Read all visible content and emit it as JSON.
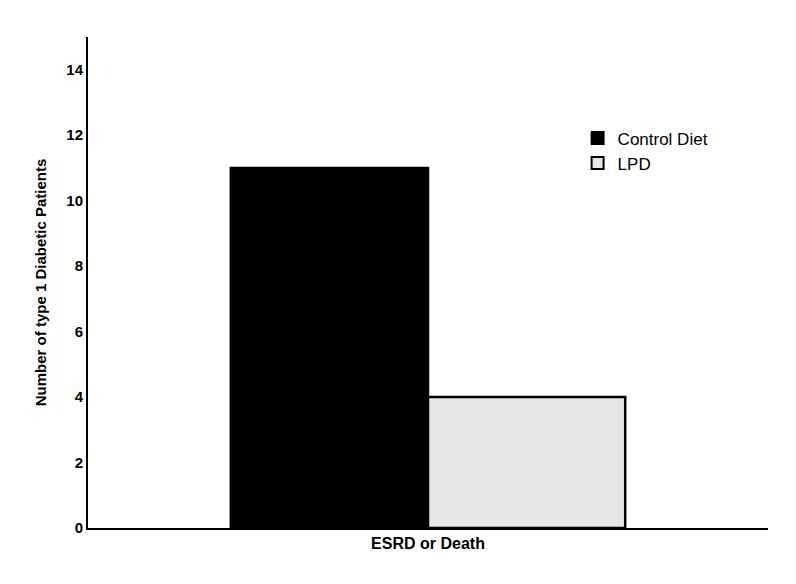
{
  "chart_data": {
    "type": "bar",
    "categories": [
      "ESRD or Death"
    ],
    "series": [
      {
        "name": "Control Diet",
        "color": "#000000",
        "values": [
          11
        ]
      },
      {
        "name": "LPD",
        "color": "#e6e6e6",
        "values": [
          4
        ]
      }
    ],
    "y_label": "Number of type 1 Diabetic Patients",
    "ylim": [
      0,
      15
    ],
    "yticks": [
      0,
      2,
      4,
      6,
      8,
      10,
      12,
      14
    ],
    "grid": false,
    "legend": "upper right"
  }
}
